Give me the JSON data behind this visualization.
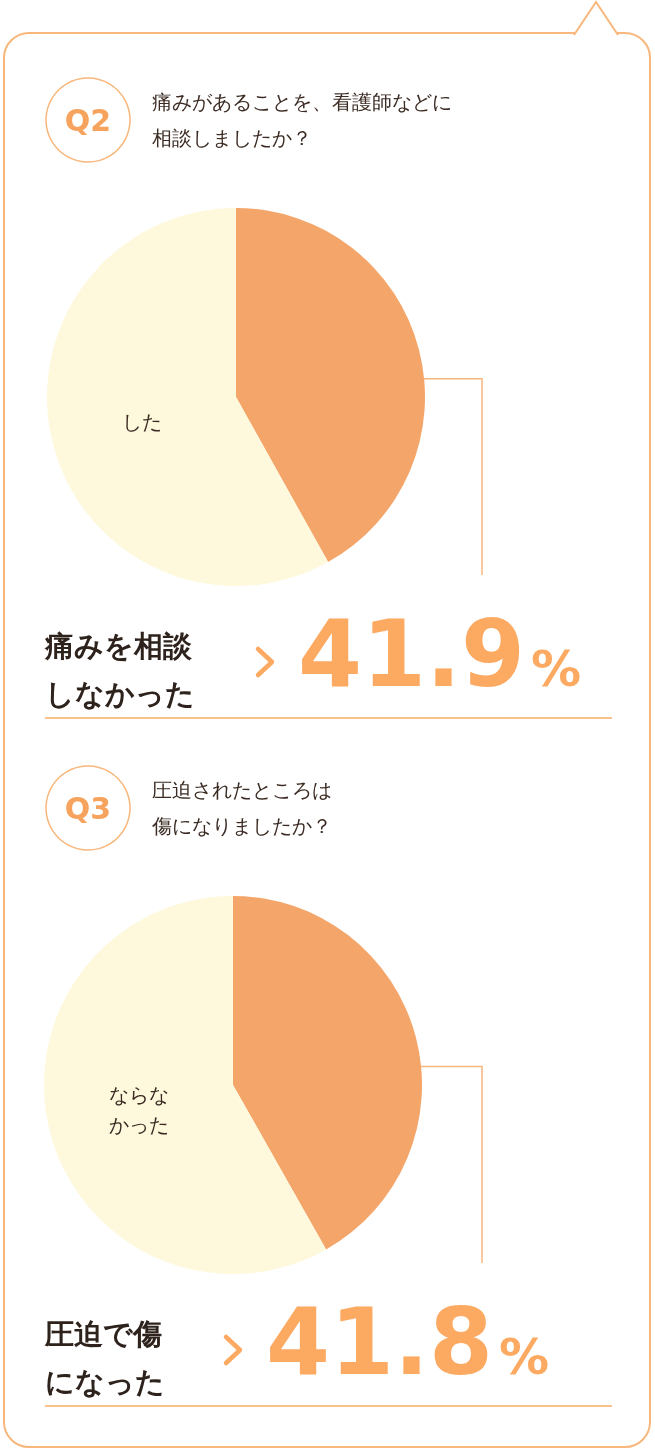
{
  "chart_data": [
    {
      "type": "pie",
      "title": "痛みがあることを、看護師などに相談しましたか？",
      "annotations": [
        "Q2"
      ],
      "categories": [
        "痛みを相談しなかった",
        "した"
      ],
      "values": [
        41.9,
        58.1
      ],
      "colors": [
        "#f4a66a",
        "#fef8dc"
      ],
      "value_labels": [
        "41.9%",
        null
      ]
    },
    {
      "type": "pie",
      "title": "圧迫されたところは傷になりましたか？",
      "annotations": [
        "Q3"
      ],
      "categories": [
        "圧迫で傷になった",
        "ならなかった"
      ],
      "values": [
        41.8,
        58.2
      ],
      "colors": [
        "#f4a66a",
        "#fef8dc"
      ],
      "value_labels": [
        "41.8%",
        null
      ]
    }
  ]
}
